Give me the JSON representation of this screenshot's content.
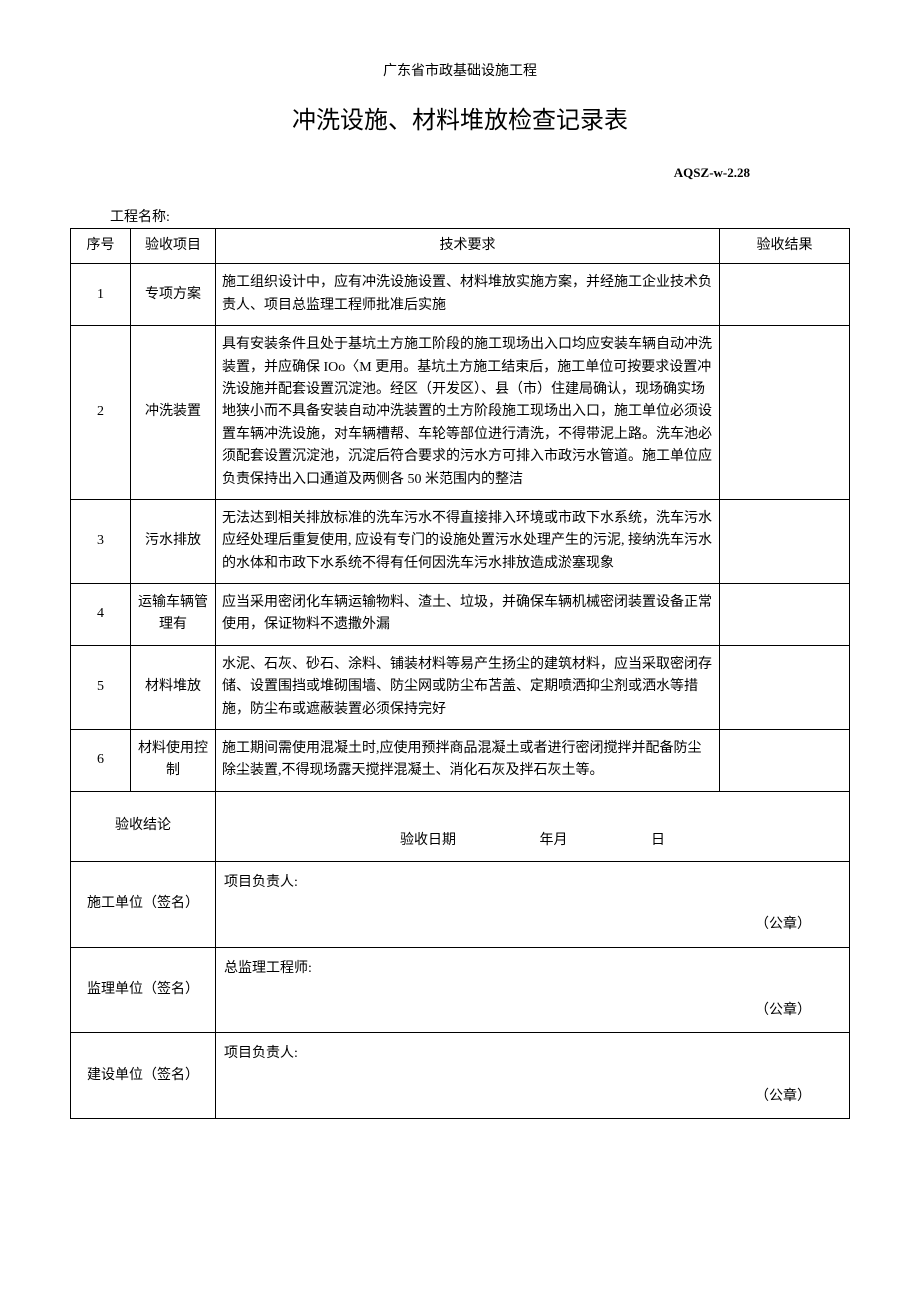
{
  "header_line": "广东省市政基础设施工程",
  "title": "冲洗设施、材料堆放检查记录表",
  "doc_code": "AQSZ-w-2.28",
  "project_name_label": "工程名称:",
  "columns": {
    "seq": "序号",
    "item": "验收项目",
    "req": "技术要求",
    "result": "验收结果"
  },
  "rows": [
    {
      "seq": "1",
      "item": "专项方案",
      "req": "施工组织设计中，应有冲洗设施设置、材料堆放实施方案，并经施工企业技术负责人、项目总监理工程师批准后实施"
    },
    {
      "seq": "2",
      "item": "冲洗装置",
      "req": "具有安装条件且处于基坑土方施工阶段的施工现场出入口均应安装车辆自动冲洗装置，并应确保 IOo〈M 更用。基坑土方施工结束后，施工单位可按要求设置冲洗设施并配套设置沉淀池。经区（开发区）、县（市）住建局确认，现场确实场地狭小而不具备安装自动冲洗装置的土方阶段施工现场出入口，施工单位必须设置车辆冲洗设施，对车辆槽帮、车轮等部位进行清洗，不得带泥上路。洗车池必须配套设置沉淀池，沉淀后符合要求的污水方可排入市政污水管道。施工单位应负责保持出入口通道及两侧各 50 米范围内的整洁"
    },
    {
      "seq": "3",
      "item": "污水排放",
      "req": "无法达到相关排放标准的洗车污水不得直接排入环境或市政下水系统，洗车污水应经处理后重复使用, 应设有专门的设施处置污水处理产生的污泥, 接纳洗车污水的水体和市政下水系统不得有任何因洗车污水排放造成淤塞现象"
    },
    {
      "seq": "4",
      "item": "运输车辆管理有",
      "req": "应当采用密闭化车辆运输物料、渣土、垃圾，并确保车辆机械密闭装置设备正常使用，保证物料不遗撒外漏"
    },
    {
      "seq": "5",
      "item": "材料堆放",
      "req": "水泥、石灰、砂石、涂料、铺装材料等易产生扬尘的建筑材料，应当采取密闭存储、设置围挡或堆砌围墙、防尘网或防尘布苫盖、定期喷洒抑尘剂或洒水等措施，防尘布或遮蔽装置必须保持完好"
    },
    {
      "seq": "6",
      "item": "材料使用控制",
      "req": "施工期间需使用混凝土时,应使用预拌商品混凝土或者进行密闭搅拌并配备防尘除尘装置,不得现场露天搅拌混凝土、消化石灰及拌石灰土等。"
    }
  ],
  "conclusion": {
    "label": "验收结论",
    "date_label": "验收日期",
    "year_month": "年月",
    "day": "日"
  },
  "sign_rows": [
    {
      "label": "施工单位（签名）",
      "role": "项目负责人:",
      "stamp": "（公章）"
    },
    {
      "label": "监理单位（签名）",
      "role": "总监理工程师:",
      "stamp": "（公章）"
    },
    {
      "label": "建设单位（签名）",
      "role": "项目负责人:",
      "stamp": "（公章）"
    }
  ]
}
